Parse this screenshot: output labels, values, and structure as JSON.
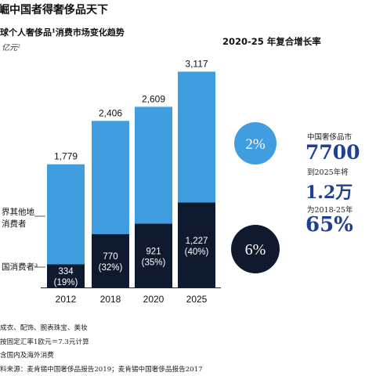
{
  "header": {
    "title": "崛中国者得奢侈品天下",
    "subtitle": "球个人奢侈品¹消费市场变化趋势",
    "unit": "亿元²",
    "cagr_title": "2020-25 年复合增长率"
  },
  "legend": {
    "rest_of_world": [
      "界其他地",
      "消费者"
    ],
    "china": "国消费者³"
  },
  "side_panel": {
    "line1": "中国奢侈品市",
    "big1": "7700",
    "line2": "到2025年将",
    "big2": "1.2万",
    "line3": "为2018-25年",
    "big3": "65%"
  },
  "footnotes": [
    "成衣、配饰、腕表珠宝、美妆",
    "按固定汇率1欧元＝7.3元计算",
    "含国内及海外消费",
    "料来源：麦肯锡中国奢侈品报告2019；麦肯锡中国奢侈品报告2017"
  ],
  "colors": {
    "rest_of_world": "#3f9de0",
    "china": "#0f1a2e",
    "highlight": "#1f3f94"
  },
  "chart_data": {
    "type": "bar",
    "stacked": true,
    "categories": [
      "2012",
      "2018",
      "2020",
      "2025"
    ],
    "totals": [
      1779,
      2406,
      2609,
      3117
    ],
    "series": [
      {
        "name": "国消费者³",
        "values": [
          334,
          770,
          921,
          1227
        ],
        "labels": [
          "334\n(19%)",
          "770\n(32%)",
          "921\n(35%)",
          "1,227\n(40%)"
        ]
      },
      {
        "name": "界其他地消费者",
        "values": [
          1445,
          1636,
          1688,
          1890
        ]
      }
    ],
    "total_labels": [
      "1,779",
      "2,406",
      "2,609",
      "3,117"
    ],
    "cagr": [
      {
        "series": "界其他地消费者",
        "value": "2%"
      },
      {
        "series": "国消费者³",
        "value": "6%"
      }
    ]
  }
}
